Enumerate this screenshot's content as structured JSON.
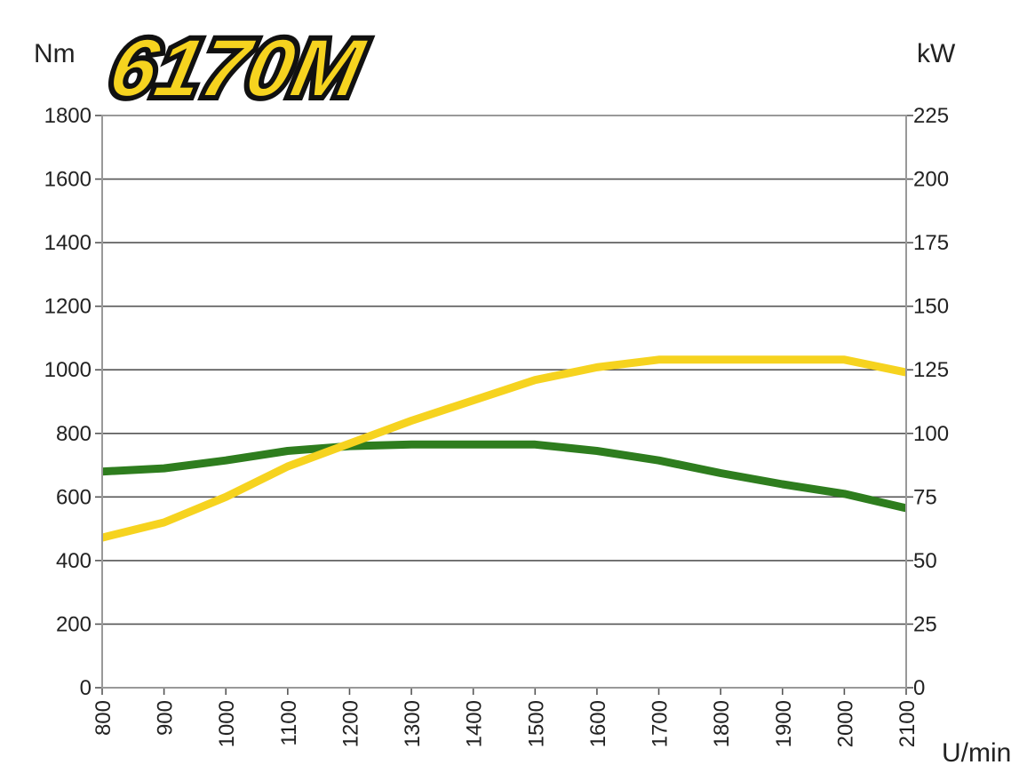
{
  "chart_data": {
    "type": "line",
    "logo_text": "6170M",
    "xlabel": "U/min",
    "ylabel_left": "Nm",
    "ylabel_right": "kW",
    "xlim": [
      800,
      2100
    ],
    "ylim_left": [
      0,
      1800
    ],
    "ylim_right": [
      0,
      225
    ],
    "x_ticks": [
      "800",
      "900",
      "1000",
      "1100",
      "1200",
      "1300",
      "1400",
      "1500",
      "1600",
      "1700",
      "1800",
      "1900",
      "2000",
      "2100"
    ],
    "y_ticks_left": [
      "0",
      "200",
      "400",
      "600",
      "800",
      "1000",
      "1200",
      "1400",
      "1600",
      "1800"
    ],
    "y_ticks_right": [
      "0",
      "25",
      "50",
      "75",
      "100",
      "125",
      "150",
      "175",
      "200",
      "225"
    ],
    "grid": true,
    "series": [
      {
        "axis": "left",
        "color": "#2e7d1e",
        "x": [
          800,
          900,
          1000,
          1100,
          1200,
          1300,
          1400,
          1500,
          1600,
          1700,
          1800,
          1900,
          2000,
          2100
        ],
        "values": [
          680,
          690,
          715,
          745,
          760,
          765,
          765,
          765,
          745,
          715,
          675,
          640,
          610,
          565
        ]
      },
      {
        "axis": "right",
        "color": "#f6d31f",
        "x": [
          800,
          900,
          1000,
          1100,
          1200,
          1300,
          1400,
          1500,
          1600,
          1700,
          1800,
          1900,
          2000,
          2100
        ],
        "values": [
          59,
          65,
          75,
          87,
          96,
          105,
          113,
          121,
          126,
          129,
          129,
          129,
          129,
          124
        ]
      }
    ]
  }
}
